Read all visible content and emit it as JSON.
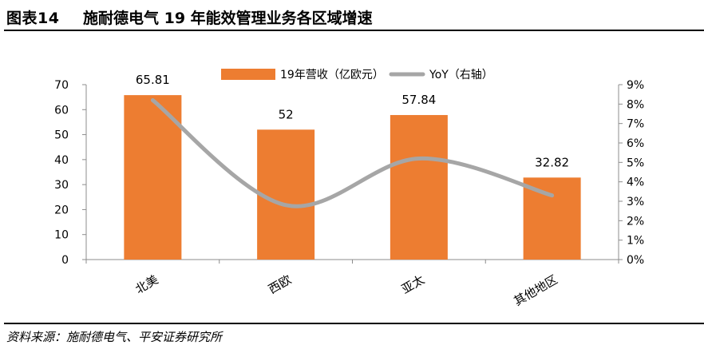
{
  "header": {
    "figure_number": "图表14",
    "title": "施耐德电气 19 年能效管理业务各区域增速"
  },
  "footer": {
    "source": "资料来源：施耐德电气、平安证券研究所"
  },
  "chart_data": {
    "type": "bar",
    "categories": [
      "北美",
      "西欧",
      "亚太",
      "其他地区"
    ],
    "series": [
      {
        "name": "19年营收（亿欧元）",
        "type": "bar",
        "axis": "left",
        "values": [
          65.81,
          52,
          57.84,
          32.82
        ],
        "data_labels": [
          "65.81",
          "52",
          "57.84",
          "32.82"
        ],
        "color": "#ED7D31"
      },
      {
        "name": "YoY（右轴）",
        "type": "line",
        "axis": "right",
        "values": [
          0.082,
          0.028,
          0.052,
          0.033
        ],
        "color": "#A6A6A6",
        "smooth": true
      }
    ],
    "y_left": {
      "min": 0,
      "max": 70,
      "step": 10,
      "ticks": [
        "0",
        "10",
        "20",
        "30",
        "40",
        "50",
        "60",
        "70"
      ]
    },
    "y_right": {
      "min": 0,
      "max": 0.09,
      "step": 0.01,
      "ticks": [
        "0%",
        "1%",
        "2%",
        "3%",
        "4%",
        "5%",
        "6%",
        "7%",
        "8%",
        "9%"
      ]
    },
    "legend_position": "top",
    "grid": false
  }
}
